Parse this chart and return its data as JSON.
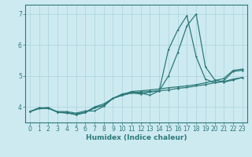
{
  "xlabel": "Humidex (Indice chaleur)",
  "ylabel": "",
  "background_color": "#cdeaf0",
  "grid_color": "#aad4dc",
  "line_color": "#2d7a7a",
  "xlim": [
    -0.5,
    23.5
  ],
  "ylim": [
    3.5,
    7.3
  ],
  "yticks": [
    4,
    5,
    6,
    7
  ],
  "xticks": [
    0,
    1,
    2,
    3,
    4,
    5,
    6,
    7,
    8,
    9,
    10,
    11,
    12,
    13,
    14,
    15,
    16,
    17,
    18,
    19,
    20,
    21,
    22,
    23
  ],
  "curves": [
    [
      3.85,
      3.97,
      3.97,
      3.83,
      3.82,
      3.75,
      3.82,
      3.97,
      4.05,
      4.28,
      4.38,
      4.45,
      4.48,
      4.5,
      4.52,
      4.55,
      4.6,
      4.63,
      4.68,
      4.72,
      4.78,
      4.85,
      5.15,
      5.18
    ],
    [
      3.85,
      3.97,
      3.97,
      3.83,
      3.82,
      3.75,
      3.82,
      3.97,
      4.05,
      4.28,
      4.38,
      4.5,
      4.52,
      4.55,
      4.58,
      4.62,
      4.65,
      4.68,
      4.72,
      4.78,
      4.85,
      4.92,
      5.18,
      5.22
    ],
    [
      3.85,
      3.95,
      3.95,
      3.85,
      3.85,
      3.8,
      3.87,
      3.87,
      4.02,
      4.28,
      4.38,
      4.45,
      4.42,
      4.48,
      4.52,
      5.85,
      6.48,
      6.95,
      5.62,
      4.9,
      4.78,
      4.82,
      4.9,
      4.95
    ],
    [
      3.85,
      3.95,
      3.98,
      3.83,
      3.8,
      3.77,
      3.83,
      4.0,
      4.1,
      4.28,
      4.42,
      4.48,
      4.45,
      4.38,
      4.52,
      5.0,
      5.75,
      6.62,
      7.0,
      5.3,
      4.88,
      4.8,
      4.87,
      4.95
    ]
  ]
}
